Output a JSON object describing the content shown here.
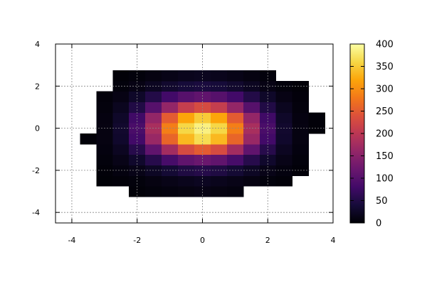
{
  "chart_data": {
    "type": "heatmap",
    "title": "",
    "xlabel": "",
    "ylabel": "",
    "xlim": [
      -4.5,
      4.0
    ],
    "ylim": [
      -4.5,
      4.0
    ],
    "xticks": [
      -4,
      -2,
      0,
      2,
      4
    ],
    "yticks": [
      -4,
      -2,
      0,
      2,
      4
    ],
    "grid": true,
    "colormap": "inferno",
    "colorbar": {
      "range": [
        0,
        400
      ],
      "ticks": [
        0,
        50,
        100,
        150,
        200,
        250,
        300,
        350,
        400
      ],
      "placement": "right"
    },
    "cell_size": 0.5,
    "x_start": -3.5,
    "y_start": -3.5,
    "grid_values": [
      [
        null,
        null,
        null,
        null,
        null,
        null,
        null,
        null,
        null,
        null,
        null,
        null,
        null,
        null,
        null
      ],
      [
        null,
        null,
        null,
        4,
        6,
        8,
        10,
        12,
        10,
        8,
        null,
        null,
        null,
        null,
        null
      ],
      [
        null,
        2,
        4,
        6,
        10,
        14,
        18,
        22,
        18,
        14,
        10,
        6,
        4,
        null,
        null
      ],
      [
        null,
        4,
        8,
        14,
        24,
        36,
        48,
        54,
        48,
        36,
        24,
        14,
        8,
        4,
        null
      ],
      [
        null,
        6,
        14,
        30,
        55,
        85,
        110,
        120,
        110,
        85,
        55,
        30,
        14,
        6,
        null
      ],
      [
        null,
        8,
        22,
        55,
        110,
        175,
        230,
        250,
        230,
        175,
        110,
        55,
        22,
        8,
        null
      ],
      [
        4,
        10,
        30,
        80,
        165,
        260,
        335,
        365,
        335,
        260,
        165,
        80,
        30,
        10,
        null
      ],
      [
        null,
        10,
        32,
        88,
        180,
        285,
        360,
        385,
        360,
        285,
        180,
        88,
        32,
        10,
        4
      ],
      [
        null,
        9,
        28,
        78,
        160,
        250,
        320,
        350,
        320,
        250,
        160,
        78,
        28,
        9,
        4
      ],
      [
        null,
        7,
        20,
        50,
        100,
        160,
        210,
        230,
        210,
        160,
        100,
        50,
        20,
        7,
        null
      ],
      [
        null,
        5,
        12,
        28,
        52,
        80,
        100,
        110,
        100,
        80,
        52,
        28,
        12,
        5,
        null
      ],
      [
        null,
        null,
        6,
        12,
        22,
        32,
        40,
        44,
        40,
        32,
        22,
        12,
        6,
        3,
        null
      ],
      [
        null,
        null,
        3,
        6,
        10,
        14,
        18,
        20,
        18,
        14,
        10,
        6,
        null,
        null,
        null
      ],
      [
        null,
        null,
        null,
        null,
        null,
        null,
        null,
        null,
        null,
        null,
        null,
        null,
        null,
        null,
        null
      ],
      [
        null,
        null,
        null,
        null,
        null,
        null,
        null,
        null,
        null,
        null,
        null,
        null,
        null,
        null,
        null
      ]
    ]
  }
}
